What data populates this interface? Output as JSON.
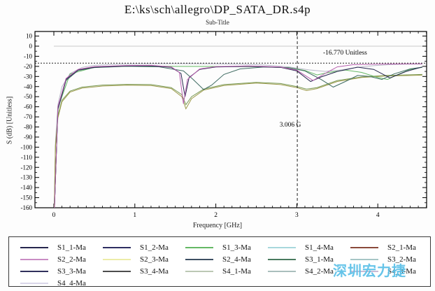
{
  "header": {
    "title": "E:\\ks\\sch\\allegro\\DP_SATA_DR.s4p",
    "subtitle": "Sub-Title"
  },
  "watermark": "深圳宏力捷",
  "watermark_color": "#5ac0e8",
  "legend": {
    "entries": [
      {
        "label": "S1_1-Ma",
        "color": "#26264e"
      },
      {
        "label": "S1_2-Ma",
        "color": "#2e2e62"
      },
      {
        "label": "S1_3-Ma",
        "color": "#64b864"
      },
      {
        "label": "S1_4-Ma",
        "color": "#a8d8dc"
      },
      {
        "label": "S2_1-Ma",
        "color": "#8a4a3a"
      },
      {
        "label": "S2_2-Ma",
        "color": "#c98cc4"
      },
      {
        "label": "S2_3-Ma",
        "color": "#ececa8"
      },
      {
        "label": "S2_4-Ma",
        "color": "#3d4f63"
      },
      {
        "label": "S3_1-Ma",
        "color": "#4a7a5f"
      },
      {
        "label": "S3_2-Ma",
        "color": "#a7c6c6"
      },
      {
        "label": "S3_3-Ma",
        "color": "#30305c"
      },
      {
        "label": "S3_4-Ma",
        "color": "#4d4d4d"
      },
      {
        "label": "S4_1-Ma",
        "color": "#bcc8b4"
      },
      {
        "label": "S4_2-Ma",
        "color": "#aabfbd"
      },
      {
        "label": "S4_3-Ma",
        "color": "#c9bcd6"
      },
      {
        "label": "S4_4-Ma",
        "color": "#d9d6e9"
      }
    ]
  },
  "chart_data": {
    "type": "line",
    "title": "E:\\ks\\sch\\allegro\\DP_SATA_DR.s4p",
    "subtitle": "Sub-Title",
    "xlabel": "Frequency [GHz]",
    "ylabel": "S (dB) [Unitless]",
    "xlim": [
      -0.233,
      4.64
    ],
    "ylim": [
      -160,
      14.5
    ],
    "xticks": [
      0,
      1,
      2,
      3,
      4
    ],
    "yticks": [
      10,
      0,
      -10,
      -20,
      -30,
      -40,
      -50,
      -60,
      -70,
      -80,
      -90,
      -100,
      -110,
      -120,
      -130,
      -140,
      -150,
      -160
    ],
    "x_minor_step": 0.1,
    "y_minor_step": 5,
    "grid": "off",
    "zero_line_dB": 0,
    "annotations": {
      "hline": {
        "y": -16.77,
        "label": "-16.770 Unitless"
      },
      "vline": {
        "x": 3.006,
        "label": "3.006 G"
      }
    },
    "series": [
      {
        "name": "S4_4-Ma (light top trace)",
        "color": "#b9b9c9",
        "x": [
          0.008,
          0.02,
          0.05,
          0.1,
          0.2,
          0.35,
          0.5,
          0.8,
          1.2,
          1.6,
          2.0,
          2.3,
          2.6,
          2.9,
          3.15,
          3.35,
          3.55,
          3.75,
          3.95,
          4.15,
          4.35,
          4.55
        ],
        "y": [
          -160,
          -95,
          -58,
          -40,
          -27,
          -21,
          -19,
          -17.8,
          -17.4,
          -17.3,
          -17.5,
          -17.8,
          -18.6,
          -20.5,
          -23.5,
          -25,
          -23.5,
          -21,
          -19.3,
          -18.3,
          -17.9,
          -17.7
        ]
      },
      {
        "name": "S4_2/S3_2-Ma (lower green)",
        "color": "#7a9a55",
        "x": [
          0.005,
          0.02,
          0.05,
          0.1,
          0.2,
          0.35,
          0.6,
          0.9,
          1.2,
          1.45,
          1.58,
          1.63,
          1.7,
          1.85,
          2.1,
          2.5,
          2.8,
          3.0,
          3.12,
          3.25,
          3.5,
          3.8,
          4.1,
          4.4,
          4.55
        ],
        "y": [
          -160,
          -98,
          -69,
          -53.5,
          -44.5,
          -40.5,
          -38.5,
          -37.8,
          -38,
          -41,
          -48,
          -58,
          -50,
          -42.5,
          -38,
          -35.8,
          -37,
          -40,
          -42.5,
          -41,
          -34,
          -30.5,
          -29,
          -28.3,
          -28
        ]
      },
      {
        "name": "S2_3-Ma (olive lower trace)",
        "color": "#9c9a4a",
        "x": [
          0.005,
          0.02,
          0.05,
          0.1,
          0.2,
          0.35,
          0.6,
          0.9,
          1.2,
          1.45,
          1.58,
          1.63,
          1.7,
          1.85,
          2.1,
          2.5,
          2.8,
          3.0,
          3.12,
          3.25,
          3.5,
          3.8,
          4.1,
          4.4,
          4.55
        ],
        "y": [
          -160,
          -100,
          -71,
          -55,
          -45.5,
          -41.5,
          -39.5,
          -38.6,
          -38.9,
          -42,
          -50,
          -62,
          -52,
          -43.5,
          -39,
          -36.5,
          -38,
          -41,
          -44,
          -42,
          -35,
          -31,
          -29.5,
          -29,
          -28.7
        ]
      },
      {
        "name": "S1_3-Ma (green)",
        "color": "#64b864",
        "x": [
          0.008,
          0.05,
          0.2,
          0.5,
          1.0,
          1.5,
          2.0,
          2.5,
          2.9,
          3.1,
          3.25,
          3.4,
          3.6,
          3.8,
          4.0,
          4.12,
          4.25,
          4.4,
          4.55
        ],
        "y": [
          -160,
          -61,
          -27.5,
          -20.9,
          -19.7,
          -20,
          -20.1,
          -20.3,
          -21.2,
          -24,
          -28.5,
          -26,
          -23.6,
          -26,
          -31,
          -33,
          -28,
          -23,
          -21
        ]
      },
      {
        "name": "S2_4/S3_1-Ma (teal)",
        "color": "#3f6b62",
        "x": [
          0.008,
          0.05,
          0.15,
          0.3,
          0.5,
          0.9,
          1.3,
          1.6,
          1.72,
          1.85,
          1.95,
          2.1,
          2.3,
          2.6,
          2.9,
          3.1,
          3.3,
          3.45,
          3.6,
          3.75,
          3.9,
          4.05,
          4.2,
          4.4,
          4.55
        ],
        "y": [
          -160,
          -63,
          -34,
          -24,
          -21.2,
          -19.9,
          -20.4,
          -24.5,
          -33,
          -43,
          -38.5,
          -28,
          -22.5,
          -20.6,
          -21.4,
          -24.5,
          -33,
          -40.5,
          -35,
          -29,
          -30,
          -33,
          -27.5,
          -22.5,
          -20.8
        ]
      },
      {
        "name": "S1_1/S3_3-Ma (dark navy)",
        "color": "#26264e",
        "x": [
          0.008,
          0.05,
          0.15,
          0.3,
          0.5,
          0.9,
          1.2,
          1.45,
          1.57,
          1.62,
          1.67,
          1.8,
          2.0,
          2.4,
          2.8,
          3.0,
          3.17,
          3.3,
          3.5,
          3.75,
          3.95,
          4.15,
          4.35,
          4.55
        ],
        "y": [
          -160,
          -62,
          -33,
          -23.5,
          -20.8,
          -19.6,
          -19.4,
          -21,
          -27,
          -50,
          -31,
          -23,
          -20.6,
          -20,
          -21,
          -24.5,
          -35,
          -30.5,
          -25,
          -20.8,
          -23,
          -31.5,
          -25,
          -20.6
        ]
      },
      {
        "name": "S2_2-Ma (magenta)",
        "color": "#b75fae",
        "x": [
          0.008,
          0.05,
          0.15,
          0.3,
          0.5,
          0.9,
          1.2,
          1.45,
          1.55,
          1.6,
          1.65,
          1.8,
          2.0,
          2.4,
          2.8,
          3.0,
          3.2,
          3.35,
          3.5,
          3.7,
          4.0,
          4.3,
          4.55
        ],
        "y": [
          -160,
          -60,
          -32,
          -23,
          -20.2,
          -19.1,
          -19,
          -20.5,
          -26,
          -57,
          -33,
          -22.6,
          -20.2,
          -19.6,
          -20.6,
          -23.8,
          -34,
          -27,
          -20.5,
          -18.3,
          -17.8,
          -17.6,
          -17.5
        ]
      }
    ]
  }
}
